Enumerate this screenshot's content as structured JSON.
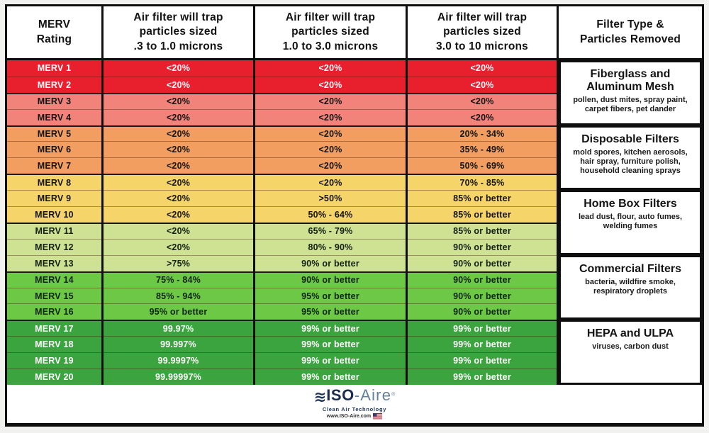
{
  "header": {
    "merv": "MERV\nRating",
    "small": "Air filter will trap\nparticles sized\n.3 to 1.0 microns",
    "medium": "Air filter will trap\nparticles sized\n1.0 to 3.0 microns",
    "large": "Air filter will trap\nparticles sized\n3.0 to 10 microns",
    "type": "Filter Type &\nParticles Removed"
  },
  "chart_data": {
    "type": "table",
    "columns": [
      "MERV Rating",
      "Air filter will trap particles sized .3 to 1.0 microns",
      "Air filter will trap particles sized 1.0 to 3.0 microns",
      "Air filter will trap particles sized 3.0 to 10 microns",
      "Filter Type & Particles Removed"
    ],
    "rows": [
      {
        "merv": "MERV 1",
        "p03": "<20%",
        "p1": "<20%",
        "p3": "<20%",
        "tier": "red"
      },
      {
        "merv": "MERV 2",
        "p03": "<20%",
        "p1": "<20%",
        "p3": "<20%",
        "tier": "red"
      },
      {
        "merv": "MERV 3",
        "p03": "<20%",
        "p1": "<20%",
        "p3": "<20%",
        "tier": "salmon"
      },
      {
        "merv": "MERV 4",
        "p03": "<20%",
        "p1": "<20%",
        "p3": "<20%",
        "tier": "salmon"
      },
      {
        "merv": "MERV 5",
        "p03": "<20%",
        "p1": "<20%",
        "p3": "20% - 34%",
        "tier": "orange"
      },
      {
        "merv": "MERV 6",
        "p03": "<20%",
        "p1": "<20%",
        "p3": "35% - 49%",
        "tier": "orange"
      },
      {
        "merv": "MERV 7",
        "p03": "<20%",
        "p1": "<20%",
        "p3": "50% - 69%",
        "tier": "orange"
      },
      {
        "merv": "MERV 8",
        "p03": "<20%",
        "p1": "<20%",
        "p3": "70% - 85%",
        "tier": "yellow"
      },
      {
        "merv": "MERV 9",
        "p03": "<20%",
        "p1": ">50%",
        "p3": "85% or better",
        "tier": "yellow"
      },
      {
        "merv": "MERV 10",
        "p03": "<20%",
        "p1": "50% - 64%",
        "p3": "85% or better",
        "tier": "yellow"
      },
      {
        "merv": "MERV 11",
        "p03": "<20%",
        "p1": "65% - 79%",
        "p3": "85% or better",
        "tier": "light-green"
      },
      {
        "merv": "MERV 12",
        "p03": "<20%",
        "p1": "80% - 90%",
        "p3": "90% or better",
        "tier": "light-green"
      },
      {
        "merv": "MERV 13",
        "p03": ">75%",
        "p1": "90% or better",
        "p3": "90% or better",
        "tier": "light-green"
      },
      {
        "merv": "MERV 14",
        "p03": "75% - 84%",
        "p1": "90% or better",
        "p3": "90% or better",
        "tier": "green"
      },
      {
        "merv": "MERV 15",
        "p03": "85% - 94%",
        "p1": "95% or better",
        "p3": "90% or better",
        "tier": "green"
      },
      {
        "merv": "MERV 16",
        "p03": "95% or better",
        "p1": "95% or better",
        "p3": "90% or better",
        "tier": "green"
      },
      {
        "merv": "MERV 17",
        "p03": "99.97%",
        "p1": "99% or better",
        "p3": "99% or better",
        "tier": "dark-green"
      },
      {
        "merv": "MERV 18",
        "p03": "99.997%",
        "p1": "99% or better",
        "p3": "99% or better",
        "tier": "dark-green"
      },
      {
        "merv": "MERV 19",
        "p03": "99.9997%",
        "p1": "99% or better",
        "p3": "99% or better",
        "tier": "dark-green"
      },
      {
        "merv": "MERV 20",
        "p03": "99.99997%",
        "p1": "99% or better",
        "p3": "99% or better",
        "tier": "dark-green"
      }
    ],
    "groups": [
      {
        "rows": "MERV 1-4",
        "title": "Fiberglass and Aluminum Mesh",
        "particles": "pollen, dust mites, spray paint, carpet fibers, pet dander"
      },
      {
        "rows": "MERV 5-8",
        "title": "Disposable Filters",
        "particles": "mold spores, kitchen aerosols, hair spray, furniture polish, household cleaning sprays"
      },
      {
        "rows": "MERV 9-12",
        "title": "Home Box Filters",
        "particles": "lead dust, flour, auto fumes, welding fumes"
      },
      {
        "rows": "MERV 13-16",
        "title": "Commercial Filters",
        "particles": "bacteria, wildfire smoke, respiratory droplets"
      },
      {
        "rows": "MERV 17-20",
        "title": "HEPA and ULPA",
        "particles": "viruses, carbon dust"
      }
    ]
  },
  "colors": {
    "tier_red": "#e81f2d",
    "tier_salmon": "#f1837b",
    "tier_orange": "#f29e60",
    "tier_yellow": "#f5d469",
    "tier_light_green": "#cfe293",
    "tier_green": "#6cc845",
    "tier_dark_green": "#3ba43e",
    "brand_navy": "#1d2c4e",
    "brand_blue": "#64809f"
  },
  "footer": {
    "waves_icon": "≋",
    "brand": "ISO-Aire",
    "trademark": "®",
    "tagline": "Clean Air Technology",
    "website": "www.ISO-Aire.com",
    "flag_icon": "us-flag"
  }
}
